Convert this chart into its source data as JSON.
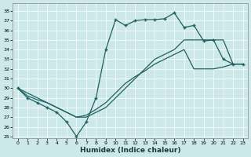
{
  "xlabel": "Humidex (Indice chaleur)",
  "bg_color": "#cce8e8",
  "line_color": "#206060",
  "ylim": [
    24.8,
    38.8
  ],
  "xlim": [
    -0.5,
    23.5
  ],
  "yticks": [
    25,
    26,
    27,
    28,
    29,
    30,
    31,
    32,
    33,
    34,
    35,
    36,
    37,
    38
  ],
  "xticks": [
    0,
    1,
    2,
    3,
    4,
    5,
    6,
    7,
    8,
    9,
    10,
    11,
    12,
    13,
    14,
    15,
    16,
    17,
    18,
    19,
    20,
    21,
    22,
    23
  ],
  "curve1_x": [
    0,
    1,
    2,
    3,
    4,
    5,
    6,
    7,
    8,
    9,
    10,
    11,
    12,
    13,
    14,
    15,
    16,
    17,
    18,
    19,
    20,
    21,
    22,
    23
  ],
  "curve1_y": [
    30.0,
    29.0,
    28.5,
    28.0,
    27.5,
    26.5,
    25.0,
    26.5,
    29.0,
    34.0,
    37.1,
    36.5,
    37.0,
    37.1,
    37.1,
    37.2,
    37.8,
    36.3,
    36.5,
    34.9,
    35.0,
    33.0,
    32.5,
    32.5
  ],
  "curve2_x": [
    0,
    1,
    2,
    3,
    4,
    5,
    6,
    7,
    8,
    9,
    10,
    11,
    12,
    13,
    14,
    15,
    16,
    17,
    18,
    19,
    20,
    21,
    22,
    23
  ],
  "curve2_y": [
    30.0,
    29.5,
    29.0,
    28.5,
    28.0,
    27.5,
    27.0,
    27.0,
    27.5,
    28.0,
    29.0,
    30.0,
    31.0,
    32.0,
    33.0,
    33.5,
    34.0,
    35.0,
    35.0,
    35.0,
    35.0,
    35.0,
    32.5,
    32.5
  ],
  "curve3_x": [
    0,
    1,
    2,
    3,
    4,
    5,
    6,
    7,
    8,
    9,
    10,
    11,
    12,
    13,
    14,
    15,
    16,
    17,
    18,
    19,
    20,
    21,
    22,
    23
  ],
  "curve3_y": [
    30.0,
    29.2,
    28.8,
    28.5,
    28.0,
    27.5,
    27.0,
    27.2,
    27.8,
    28.5,
    29.5,
    30.5,
    31.2,
    31.8,
    32.5,
    33.0,
    33.5,
    34.0,
    32.0,
    32.0,
    32.0,
    32.2,
    32.5,
    32.5
  ],
  "marker_x": [
    0,
    1,
    2,
    3,
    4,
    5,
    6,
    7,
    8,
    9,
    10,
    11,
    12,
    13,
    14,
    15,
    16,
    17,
    18,
    19,
    20,
    21,
    22,
    23
  ],
  "marker_y": [
    30.0,
    29.0,
    28.5,
    28.0,
    27.5,
    26.5,
    25.0,
    26.5,
    29.0,
    34.0,
    37.1,
    36.5,
    37.0,
    37.1,
    37.1,
    37.2,
    37.8,
    36.3,
    36.5,
    34.9,
    35.0,
    33.0,
    32.5,
    32.5
  ]
}
